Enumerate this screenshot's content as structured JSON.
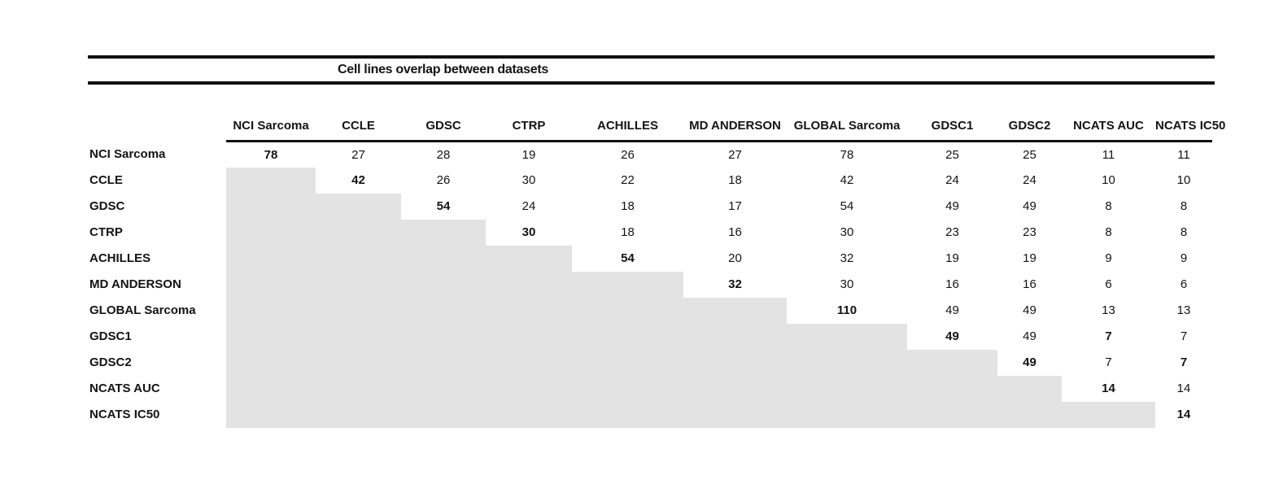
{
  "title": "Cell lines overlap between datasets",
  "table": {
    "corner_label": "",
    "columns": [
      "NCI Sarcoma",
      "CCLE",
      "GDSC",
      "CTRP",
      "ACHILLES",
      "MD ANDERSON",
      "GLOBAL Sarcoma",
      "GDSC1",
      "GDSC2",
      "NCATS AUC",
      "NCATS IC50"
    ],
    "rows": [
      {
        "label": "NCI Sarcoma",
        "values": [
          78,
          27,
          28,
          19,
          26,
          27,
          78,
          25,
          25,
          11,
          11
        ]
      },
      {
        "label": "CCLE",
        "values": [
          null,
          42,
          26,
          30,
          22,
          18,
          42,
          24,
          24,
          10,
          10
        ]
      },
      {
        "label": "GDSC",
        "values": [
          null,
          null,
          54,
          24,
          18,
          17,
          54,
          49,
          49,
          8,
          8
        ]
      },
      {
        "label": "CTRP",
        "values": [
          null,
          null,
          null,
          30,
          18,
          16,
          30,
          23,
          23,
          8,
          8
        ]
      },
      {
        "label": "ACHILLES",
        "values": [
          null,
          null,
          null,
          null,
          54,
          20,
          32,
          19,
          19,
          9,
          9
        ]
      },
      {
        "label": "MD ANDERSON",
        "values": [
          null,
          null,
          null,
          null,
          null,
          32,
          30,
          16,
          16,
          6,
          6
        ]
      },
      {
        "label": "GLOBAL Sarcoma",
        "values": [
          null,
          null,
          null,
          null,
          null,
          null,
          110,
          49,
          49,
          13,
          13
        ]
      },
      {
        "label": "GDSC1",
        "values": [
          null,
          null,
          null,
          null,
          null,
          null,
          null,
          49,
          49,
          7,
          7
        ]
      },
      {
        "label": "GDSC2",
        "values": [
          null,
          null,
          null,
          null,
          null,
          null,
          null,
          null,
          49,
          7,
          7
        ]
      },
      {
        "label": "NCATS AUC",
        "values": [
          null,
          null,
          null,
          null,
          null,
          null,
          null,
          null,
          null,
          14,
          14
        ]
      },
      {
        "label": "NCATS IC50",
        "values": [
          null,
          null,
          null,
          null,
          null,
          null,
          null,
          null,
          null,
          null,
          14
        ]
      }
    ],
    "bold_cells": [
      [
        0,
        0
      ],
      [
        1,
        1
      ],
      [
        2,
        2
      ],
      [
        3,
        3
      ],
      [
        4,
        4
      ],
      [
        5,
        5
      ],
      [
        6,
        6
      ],
      [
        7,
        7
      ],
      [
        7,
        9
      ],
      [
        8,
        8
      ],
      [
        8,
        10
      ],
      [
        9,
        9
      ],
      [
        10,
        10
      ]
    ],
    "shading": "lower-triangle"
  },
  "colors": {
    "shaded_cell": "#e4e3e3",
    "rule_line": "#111111",
    "text": "#141414",
    "background": "#ffffff"
  }
}
